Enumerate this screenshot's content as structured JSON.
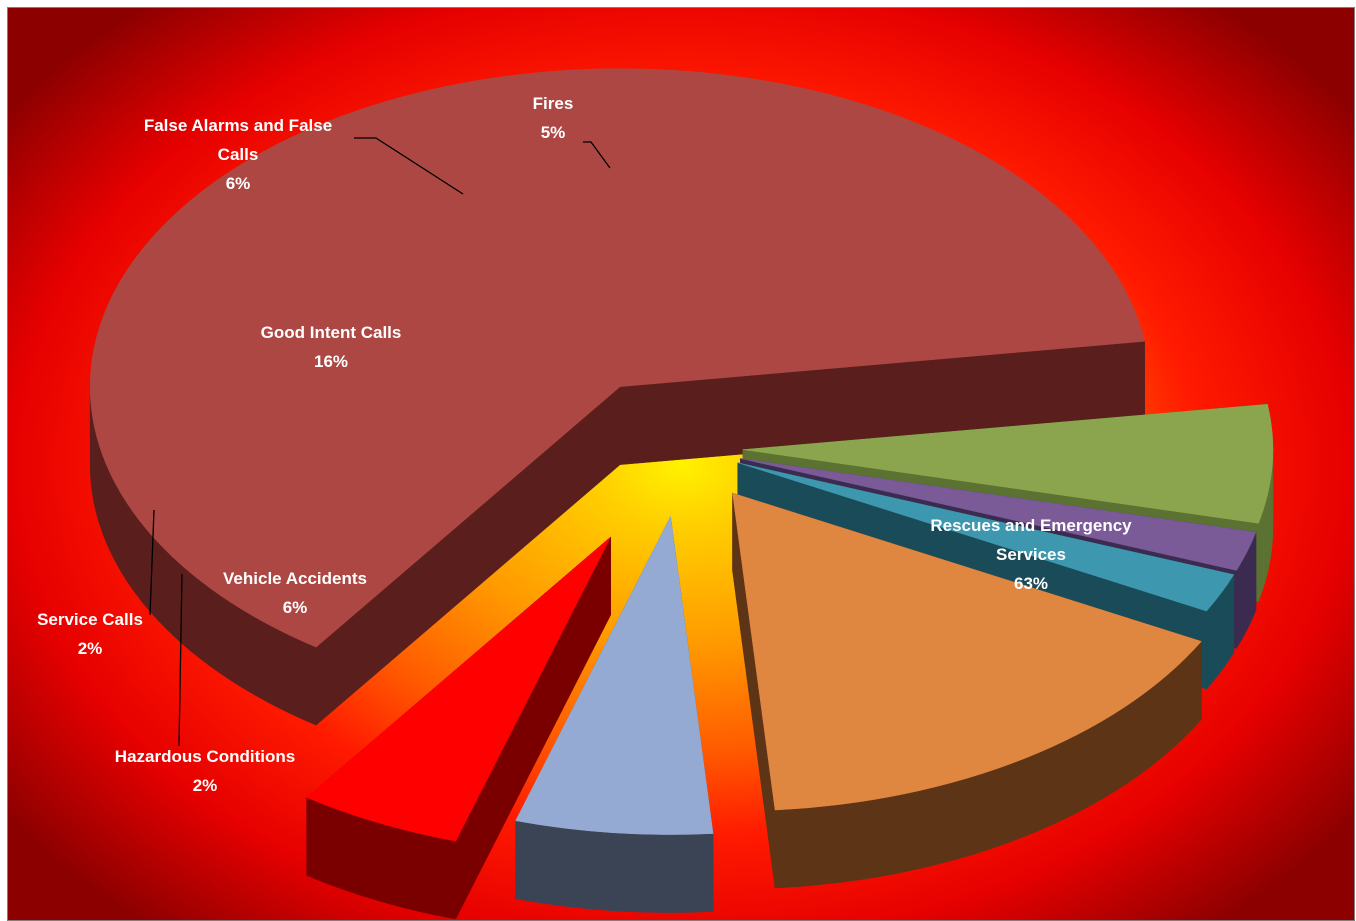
{
  "chart_data": {
    "type": "pie",
    "style": "3d-exploded",
    "slices": [
      {
        "name": "Rescues and Emergency Services",
        "label_lines": [
          "Rescues and Emergency",
          "Services"
        ],
        "percent_label": "63%",
        "value": 63,
        "color": "#ad4743",
        "side_color": "#5a1f1d"
      },
      {
        "name": "Vehicle Accidents",
        "label_lines": [
          "Vehicle Accidents"
        ],
        "percent_label": "6%",
        "value": 6,
        "color": "#8aa54e",
        "side_color": "#5b7232"
      },
      {
        "name": "Hazardous Conditions",
        "label_lines": [
          "Hazardous Conditions"
        ],
        "percent_label": "2%",
        "value": 2,
        "color": "#7a5a97",
        "side_color": "#3c2b50"
      },
      {
        "name": "Service Calls",
        "label_lines": [
          "Service Calls"
        ],
        "percent_label": "2%",
        "value": 2,
        "color": "#3d97ae",
        "side_color": "#1a4b58"
      },
      {
        "name": "Good Intent Calls",
        "label_lines": [
          "Good Intent Calls"
        ],
        "percent_label": "16%",
        "value": 16,
        "color": "#df8641",
        "side_color": "#5e3417"
      },
      {
        "name": "False Alarms and False Calls",
        "label_lines": [
          "False Alarms and False",
          "Calls"
        ],
        "percent_label": "6%",
        "value": 6,
        "color": "#95aad3",
        "side_color": "#3a4455"
      },
      {
        "name": "Fires",
        "label_lines": [
          "Fires"
        ],
        "percent_label": "5%",
        "value": 5,
        "color": "#ff0000",
        "side_color": "#7a0000"
      }
    ]
  }
}
